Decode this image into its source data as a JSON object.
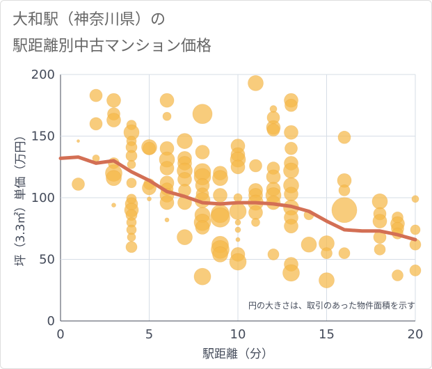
{
  "title_line1": "大和駅（神奈川県）の",
  "title_line2": "駅距離別中古マンション価格",
  "chart_data": {
    "type": "scatter",
    "xlabel": "駅距離（分）",
    "ylabel": "坪（3.3㎡）単価（万円）",
    "xlim": [
      0,
      20
    ],
    "ylim": [
      0,
      200
    ],
    "x_ticks": [
      "0",
      "5",
      "10",
      "15",
      "20"
    ],
    "y_ticks": [
      "0",
      "50",
      "100",
      "150",
      "200"
    ],
    "grid": true,
    "note": "円の大きさは、取引のあった物件面積を示す",
    "bubble_color": "#f5b94a",
    "line_color": "#d36f54",
    "bubbles": [
      {
        "x": 1,
        "y": 111,
        "s": 9
      },
      {
        "x": 1,
        "y": 146,
        "s": 2
      },
      {
        "x": 2,
        "y": 183,
        "s": 9
      },
      {
        "x": 2,
        "y": 160,
        "s": 9
      },
      {
        "x": 2,
        "y": 132,
        "s": 5
      },
      {
        "x": 3,
        "y": 179,
        "s": 10
      },
      {
        "x": 3,
        "y": 168,
        "s": 9
      },
      {
        "x": 3,
        "y": 163,
        "s": 10
      },
      {
        "x": 3,
        "y": 128,
        "s": 8
      },
      {
        "x": 3,
        "y": 120,
        "s": 12
      },
      {
        "x": 3,
        "y": 116,
        "s": 11
      },
      {
        "x": 3,
        "y": 94,
        "s": 3
      },
      {
        "x": 4,
        "y": 159,
        "s": 7
      },
      {
        "x": 4,
        "y": 153,
        "s": 11
      },
      {
        "x": 4,
        "y": 146,
        "s": 7
      },
      {
        "x": 4,
        "y": 141,
        "s": 8
      },
      {
        "x": 4,
        "y": 134,
        "s": 8
      },
      {
        "x": 4,
        "y": 127,
        "s": 6
      },
      {
        "x": 4,
        "y": 112,
        "s": 7
      },
      {
        "x": 4,
        "y": 99,
        "s": 7
      },
      {
        "x": 4,
        "y": 95,
        "s": 9
      },
      {
        "x": 4,
        "y": 90,
        "s": 10
      },
      {
        "x": 4,
        "y": 86,
        "s": 8
      },
      {
        "x": 4,
        "y": 80,
        "s": 7
      },
      {
        "x": 4,
        "y": 74,
        "s": 7
      },
      {
        "x": 4,
        "y": 68,
        "s": 6
      },
      {
        "x": 4,
        "y": 60,
        "s": 8
      },
      {
        "x": 5,
        "y": 141,
        "s": 11
      },
      {
        "x": 5,
        "y": 140,
        "s": 9
      },
      {
        "x": 5,
        "y": 111,
        "s": 8
      },
      {
        "x": 5,
        "y": 108,
        "s": 10
      },
      {
        "x": 5,
        "y": 99,
        "s": 3
      },
      {
        "x": 6,
        "y": 179,
        "s": 10
      },
      {
        "x": 6,
        "y": 166,
        "s": 6
      },
      {
        "x": 6,
        "y": 140,
        "s": 10
      },
      {
        "x": 6,
        "y": 131,
        "s": 11
      },
      {
        "x": 6,
        "y": 124,
        "s": 10
      },
      {
        "x": 6,
        "y": 112,
        "s": 10
      },
      {
        "x": 6,
        "y": 107,
        "s": 9
      },
      {
        "x": 6,
        "y": 102,
        "s": 10
      },
      {
        "x": 6,
        "y": 96,
        "s": 10
      },
      {
        "x": 6,
        "y": 82,
        "s": 3
      },
      {
        "x": 7,
        "y": 146,
        "s": 11
      },
      {
        "x": 7,
        "y": 132,
        "s": 10
      },
      {
        "x": 7,
        "y": 128,
        "s": 10
      },
      {
        "x": 7,
        "y": 122,
        "s": 11
      },
      {
        "x": 7,
        "y": 115,
        "s": 10
      },
      {
        "x": 7,
        "y": 106,
        "s": 9
      },
      {
        "x": 7,
        "y": 96,
        "s": 10
      },
      {
        "x": 7,
        "y": 68,
        "s": 11
      },
      {
        "x": 8,
        "y": 168,
        "s": 14
      },
      {
        "x": 8,
        "y": 137,
        "s": 10
      },
      {
        "x": 8,
        "y": 121,
        "s": 12
      },
      {
        "x": 8,
        "y": 117,
        "s": 12
      },
      {
        "x": 8,
        "y": 110,
        "s": 10
      },
      {
        "x": 8,
        "y": 103,
        "s": 9
      },
      {
        "x": 8,
        "y": 98,
        "s": 11
      },
      {
        "x": 8,
        "y": 86,
        "s": 11
      },
      {
        "x": 8,
        "y": 80,
        "s": 12
      },
      {
        "x": 8,
        "y": 76,
        "s": 10
      },
      {
        "x": 8,
        "y": 36,
        "s": 12
      },
      {
        "x": 9,
        "y": 120,
        "s": 10
      },
      {
        "x": 9,
        "y": 116,
        "s": 11
      },
      {
        "x": 9,
        "y": 102,
        "s": 10
      },
      {
        "x": 9,
        "y": 87,
        "s": 13
      },
      {
        "x": 9,
        "y": 84,
        "s": 14
      },
      {
        "x": 9,
        "y": 62,
        "s": 12
      },
      {
        "x": 9,
        "y": 58,
        "s": 13
      },
      {
        "x": 9,
        "y": 54,
        "s": 11
      },
      {
        "x": 10,
        "y": 142,
        "s": 10
      },
      {
        "x": 10,
        "y": 135,
        "s": 10
      },
      {
        "x": 10,
        "y": 131,
        "s": 11
      },
      {
        "x": 10,
        "y": 125,
        "s": 10
      },
      {
        "x": 10,
        "y": 100,
        "s": 6
      },
      {
        "x": 10,
        "y": 89,
        "s": 12
      },
      {
        "x": 10,
        "y": 80,
        "s": 4
      },
      {
        "x": 10,
        "y": 74,
        "s": 4
      },
      {
        "x": 10,
        "y": 66,
        "s": 3
      },
      {
        "x": 10,
        "y": 54,
        "s": 10
      },
      {
        "x": 10,
        "y": 48,
        "s": 12
      },
      {
        "x": 11,
        "y": 193,
        "s": 11
      },
      {
        "x": 11,
        "y": 126,
        "s": 9
      },
      {
        "x": 11,
        "y": 106,
        "s": 10
      },
      {
        "x": 11,
        "y": 102,
        "s": 10
      },
      {
        "x": 11,
        "y": 96,
        "s": 11
      },
      {
        "x": 11,
        "y": 88,
        "s": 10
      },
      {
        "x": 11,
        "y": 80,
        "s": 6
      },
      {
        "x": 12,
        "y": 172,
        "s": 5
      },
      {
        "x": 12,
        "y": 165,
        "s": 9
      },
      {
        "x": 12,
        "y": 157,
        "s": 10
      },
      {
        "x": 12,
        "y": 155,
        "s": 9
      },
      {
        "x": 12,
        "y": 124,
        "s": 9
      },
      {
        "x": 12,
        "y": 117,
        "s": 10
      },
      {
        "x": 12,
        "y": 107,
        "s": 10
      },
      {
        "x": 12,
        "y": 102,
        "s": 11
      },
      {
        "x": 12,
        "y": 96,
        "s": 10
      },
      {
        "x": 12,
        "y": 54,
        "s": 8
      },
      {
        "x": 13,
        "y": 179,
        "s": 10
      },
      {
        "x": 13,
        "y": 175,
        "s": 9
      },
      {
        "x": 13,
        "y": 153,
        "s": 10
      },
      {
        "x": 13,
        "y": 140,
        "s": 9
      },
      {
        "x": 13,
        "y": 128,
        "s": 10
      },
      {
        "x": 13,
        "y": 122,
        "s": 11
      },
      {
        "x": 13,
        "y": 110,
        "s": 11
      },
      {
        "x": 13,
        "y": 103,
        "s": 10
      },
      {
        "x": 13,
        "y": 92,
        "s": 11
      },
      {
        "x": 13,
        "y": 84,
        "s": 10
      },
      {
        "x": 13,
        "y": 77,
        "s": 10
      },
      {
        "x": 13,
        "y": 46,
        "s": 10
      },
      {
        "x": 13,
        "y": 39,
        "s": 12
      },
      {
        "x": 14,
        "y": 86,
        "s": 7
      },
      {
        "x": 14,
        "y": 62,
        "s": 11
      },
      {
        "x": 15,
        "y": 63,
        "s": 11
      },
      {
        "x": 15,
        "y": 55,
        "s": 8
      },
      {
        "x": 15,
        "y": 33,
        "s": 11
      },
      {
        "x": 16,
        "y": 149,
        "s": 9
      },
      {
        "x": 16,
        "y": 114,
        "s": 10
      },
      {
        "x": 16,
        "y": 106,
        "s": 8
      },
      {
        "x": 16,
        "y": 90,
        "s": 18
      },
      {
        "x": 16,
        "y": 55,
        "s": 8
      },
      {
        "x": 18,
        "y": 97,
        "s": 11
      },
      {
        "x": 18,
        "y": 87,
        "s": 9
      },
      {
        "x": 18,
        "y": 81,
        "s": 10
      },
      {
        "x": 18,
        "y": 68,
        "s": 9
      },
      {
        "x": 18,
        "y": 58,
        "s": 8
      },
      {
        "x": 19,
        "y": 84,
        "s": 8
      },
      {
        "x": 19,
        "y": 79,
        "s": 10
      },
      {
        "x": 19,
        "y": 75,
        "s": 9
      },
      {
        "x": 19,
        "y": 71,
        "s": 8
      },
      {
        "x": 19,
        "y": 37,
        "s": 8
      },
      {
        "x": 20,
        "y": 99,
        "s": 5
      },
      {
        "x": 20,
        "y": 74,
        "s": 7
      },
      {
        "x": 20,
        "y": 62,
        "s": 8
      },
      {
        "x": 20,
        "y": 41,
        "s": 8
      }
    ],
    "trend": {
      "x": [
        0,
        1,
        2,
        3,
        4,
        5,
        6,
        7,
        8,
        9,
        10,
        11,
        12,
        13,
        14,
        15,
        16,
        17,
        18,
        19,
        20
      ],
      "y": [
        132,
        133,
        128,
        130,
        121,
        114,
        105,
        101,
        96,
        95,
        96,
        96,
        95,
        93,
        89,
        81,
        74,
        73,
        73,
        70,
        66
      ]
    }
  }
}
